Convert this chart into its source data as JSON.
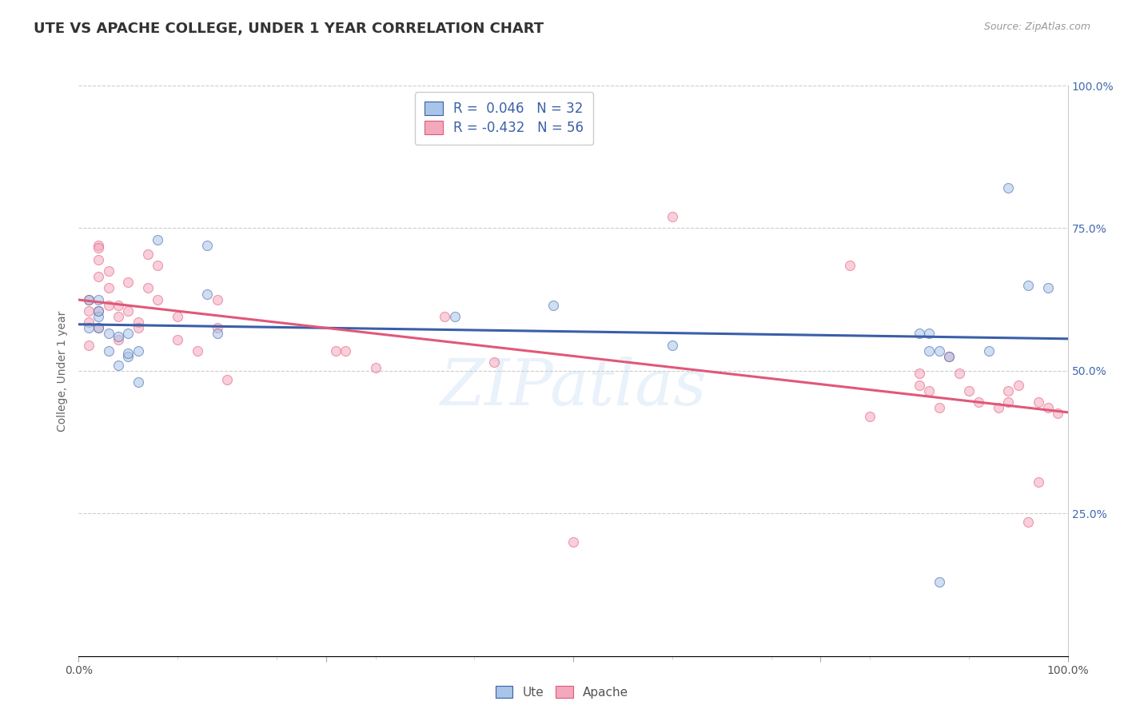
{
  "title": "UTE VS APACHE COLLEGE, UNDER 1 YEAR CORRELATION CHART",
  "source": "Source: ZipAtlas.com",
  "ylabel": "College, Under 1 year",
  "right_yticks": [
    "100.0%",
    "75.0%",
    "50.0%",
    "25.0%"
  ],
  "right_ytick_vals": [
    1.0,
    0.75,
    0.5,
    0.25
  ],
  "ute_color": "#a8c4e8",
  "apache_color": "#f4a8bc",
  "ute_line_color": "#3a5fa8",
  "apache_line_color": "#e05878",
  "watermark": "ZIPatlas",
  "ute_R": 0.046,
  "ute_N": 32,
  "apache_R": -0.432,
  "apache_N": 56,
  "ute_x": [
    0.01,
    0.01,
    0.02,
    0.02,
    0.03,
    0.03,
    0.04,
    0.04,
    0.05,
    0.05,
    0.06,
    0.06,
    0.08,
    0.13,
    0.13,
    0.14,
    0.38,
    0.48,
    0.6,
    0.85,
    0.86,
    0.87,
    0.88,
    0.92,
    0.94,
    0.96,
    0.02,
    0.02,
    0.05,
    0.86,
    0.87,
    0.98
  ],
  "ute_y": [
    0.625,
    0.575,
    0.575,
    0.595,
    0.565,
    0.535,
    0.56,
    0.51,
    0.565,
    0.525,
    0.535,
    0.48,
    0.73,
    0.72,
    0.635,
    0.565,
    0.595,
    0.615,
    0.545,
    0.565,
    0.565,
    0.535,
    0.525,
    0.535,
    0.82,
    0.65,
    0.625,
    0.605,
    0.53,
    0.535,
    0.13,
    0.645
  ],
  "apache_x": [
    0.01,
    0.01,
    0.01,
    0.01,
    0.02,
    0.02,
    0.02,
    0.02,
    0.02,
    0.02,
    0.03,
    0.03,
    0.03,
    0.04,
    0.04,
    0.04,
    0.05,
    0.05,
    0.06,
    0.06,
    0.07,
    0.07,
    0.08,
    0.08,
    0.1,
    0.1,
    0.12,
    0.14,
    0.14,
    0.15,
    0.26,
    0.27,
    0.3,
    0.37,
    0.42,
    0.5,
    0.6,
    0.78,
    0.8,
    0.85,
    0.85,
    0.86,
    0.87,
    0.88,
    0.89,
    0.9,
    0.91,
    0.93,
    0.94,
    0.94,
    0.95,
    0.96,
    0.97,
    0.97,
    0.98,
    0.99
  ],
  "apache_y": [
    0.625,
    0.605,
    0.585,
    0.545,
    0.72,
    0.715,
    0.695,
    0.665,
    0.605,
    0.575,
    0.675,
    0.645,
    0.615,
    0.615,
    0.595,
    0.555,
    0.655,
    0.605,
    0.585,
    0.575,
    0.705,
    0.645,
    0.685,
    0.625,
    0.595,
    0.555,
    0.535,
    0.625,
    0.575,
    0.485,
    0.535,
    0.535,
    0.505,
    0.595,
    0.515,
    0.2,
    0.77,
    0.685,
    0.42,
    0.495,
    0.475,
    0.465,
    0.435,
    0.525,
    0.495,
    0.465,
    0.445,
    0.435,
    0.445,
    0.465,
    0.475,
    0.235,
    0.445,
    0.305,
    0.435,
    0.425
  ],
  "xmin": 0.0,
  "xmax": 1.0,
  "ymin": 0.0,
  "ymax": 1.0,
  "background_color": "#ffffff",
  "grid_color": "#cccccc",
  "title_fontsize": 13,
  "axis_fontsize": 10,
  "legend_fontsize": 12,
  "marker_size": 75,
  "marker_alpha": 0.55
}
